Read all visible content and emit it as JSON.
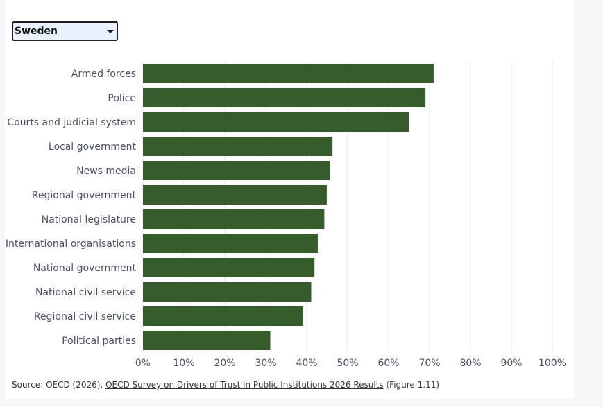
{
  "selector": {
    "selected": "Sweden",
    "icon": "chevron-down-icon"
  },
  "chart_data": {
    "type": "bar",
    "orientation": "horizontal",
    "categories": [
      "Armed forces",
      "Police",
      "Courts and judicial system",
      "Local government",
      "News media",
      "Regional government",
      "National legislature",
      "International organisations",
      "National government",
      "National civil service",
      "Regional civil service",
      "Political parties"
    ],
    "values": [
      71,
      69,
      65,
      46.3,
      45.6,
      44.9,
      44.3,
      42.7,
      41.9,
      41.1,
      39.1,
      31.1
    ],
    "xlim": [
      0,
      100
    ],
    "xticks": [
      "0%",
      "10%",
      "20%",
      "30%",
      "40%",
      "50%",
      "60%",
      "70%",
      "80%",
      "90%",
      "100%"
    ],
    "grid": true,
    "bar_color": "#375c2b",
    "grid_color": "#e6e6e6",
    "label_color": "#4a5060"
  },
  "source": {
    "prefix": "Source: OECD (2026), ",
    "link_text": "OECD Survey on Drivers of Trust in Public Institutions 2026 Results",
    "suffix": " (Figure 1.11)"
  }
}
